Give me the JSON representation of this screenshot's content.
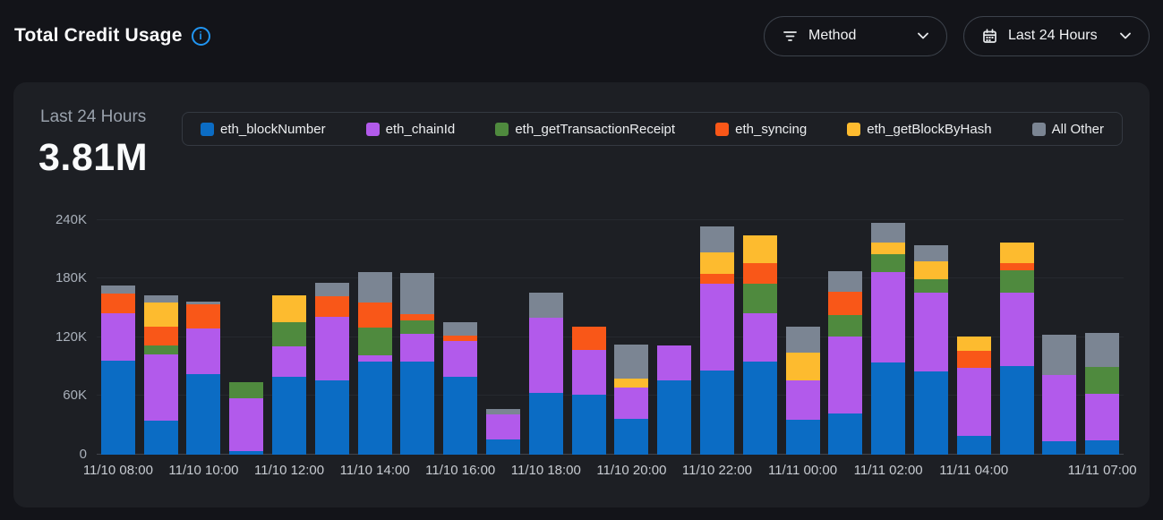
{
  "header": {
    "title": "Total Credit Usage",
    "filters": {
      "method": {
        "label": "Method"
      },
      "range": {
        "label": "Last 24 Hours"
      }
    }
  },
  "card": {
    "summary_label": "Last 24 Hours",
    "summary_value": "3.81M"
  },
  "colors": {
    "accent_blue": "#2196F3",
    "page_bg": "#131419",
    "card_bg": "#1D1F24"
  },
  "chart_data": {
    "type": "bar",
    "stacked": true,
    "n_bars": 24,
    "values_unit": "thousands of credits (K)",
    "ylim": [
      0,
      240000
    ],
    "y_ticks": [
      "0",
      "60K",
      "120K",
      "180K",
      "240K"
    ],
    "grid": "horizontal",
    "legend_position": "top",
    "x_ticks": [
      {
        "index": 0,
        "label": "11/10 08:00"
      },
      {
        "index": 2,
        "label": "11/10 10:00"
      },
      {
        "index": 4,
        "label": "11/10 12:00"
      },
      {
        "index": 6,
        "label": "11/10 14:00"
      },
      {
        "index": 8,
        "label": "11/10 16:00"
      },
      {
        "index": 10,
        "label": "11/10 18:00"
      },
      {
        "index": 12,
        "label": "11/10 20:00"
      },
      {
        "index": 14,
        "label": "11/10 22:00"
      },
      {
        "index": 16,
        "label": "11/11 00:00"
      },
      {
        "index": 18,
        "label": "11/11 02:00"
      },
      {
        "index": 20,
        "label": "11/11 04:00"
      },
      {
        "index": 23,
        "label": "11/11 07:00"
      }
    ],
    "series": [
      {
        "name": "eth_blockNumber",
        "color": "#0B6CC4",
        "values": [
          96,
          35,
          82,
          4,
          80,
          76,
          95,
          95,
          80,
          16,
          63,
          61,
          37,
          76,
          86,
          95,
          36,
          42,
          94,
          85,
          19,
          91,
          14,
          15
        ]
      },
      {
        "name": "eth_chainId",
        "color": "#B25AEB",
        "values": [
          49,
          68,
          47,
          54,
          31,
          65,
          7,
          29,
          36,
          25,
          77,
          46,
          32,
          36,
          89,
          50,
          40,
          79,
          93,
          81,
          70,
          75,
          68,
          47
        ]
      },
      {
        "name": "eth_getTransactionReceipt",
        "color": "#4F8A3E",
        "values": [
          0,
          9,
          0,
          16,
          25,
          0,
          28,
          13,
          0,
          0,
          0,
          0,
          0,
          0,
          0,
          30,
          0,
          22,
          18,
          14,
          0,
          23,
          0,
          28
        ]
      },
      {
        "name": "eth_syncing",
        "color": "#F95718",
        "values": [
          20,
          19,
          25,
          0,
          0,
          21,
          26,
          7,
          6,
          0,
          0,
          24,
          0,
          0,
          10,
          21,
          0,
          24,
          0,
          0,
          17,
          7,
          0,
          0
        ]
      },
      {
        "name": "eth_getBlockByHash",
        "color": "#FDBB2F",
        "values": [
          0,
          25,
          0,
          0,
          27,
          0,
          0,
          0,
          0,
          0,
          0,
          0,
          9,
          0,
          22,
          28,
          28,
          0,
          12,
          18,
          15,
          21,
          0,
          0
        ]
      },
      {
        "name": "All Other",
        "color": "#7B8593",
        "values": [
          8,
          7,
          3,
          0,
          0,
          14,
          31,
          42,
          14,
          6,
          26,
          0,
          35,
          0,
          27,
          0,
          27,
          21,
          20,
          16,
          0,
          0,
          41,
          35
        ]
      }
    ]
  }
}
